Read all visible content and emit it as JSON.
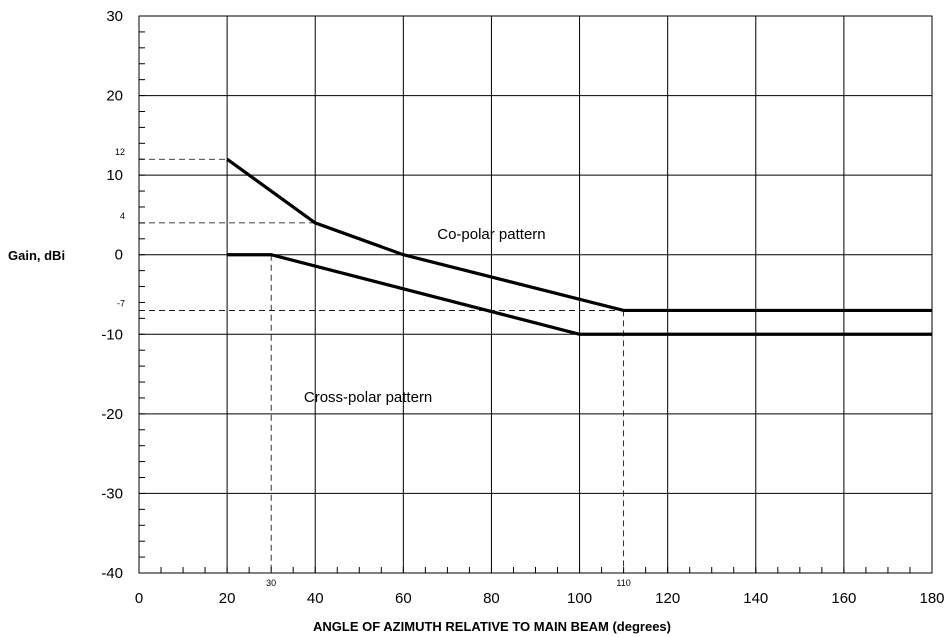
{
  "chart_data": {
    "type": "line",
    "title": "",
    "xlabel": "ANGLE OF AZIMUTH RELATIVE TO MAIN BEAM (degrees)",
    "ylabel": "Gain, dBi",
    "xlim": [
      0,
      180
    ],
    "ylim": [
      -40,
      30
    ],
    "x_ticks": [
      0,
      20,
      40,
      60,
      80,
      100,
      120,
      140,
      160,
      180
    ],
    "y_ticks": [
      -40,
      -30,
      -20,
      -10,
      0,
      10,
      20,
      30
    ],
    "grid": true,
    "series": [
      {
        "label": "Co-polar pattern",
        "points": [
          [
            20,
            12
          ],
          [
            40,
            4
          ],
          [
            60,
            0
          ],
          [
            110,
            -7
          ],
          [
            180,
            -7
          ]
        ]
      },
      {
        "label": "Cross-polar pattern",
        "points": [
          [
            20,
            0
          ],
          [
            30,
            0
          ],
          [
            100,
            -10
          ],
          [
            180,
            -10
          ]
        ]
      }
    ],
    "reference_lines": {
      "y": [
        {
          "value": 12,
          "label": "12"
        },
        {
          "value": 4,
          "label": "4"
        },
        {
          "value": -7,
          "label": "-7"
        }
      ],
      "x": [
        {
          "value": 30,
          "label": "30"
        },
        {
          "value": 110,
          "label": "110"
        }
      ]
    },
    "annotations": [
      {
        "text": "Co-polar pattern",
        "x": 80,
        "y": 2
      },
      {
        "text": "Cross-polar pattern",
        "x": 52,
        "y": -18.5
      }
    ]
  }
}
